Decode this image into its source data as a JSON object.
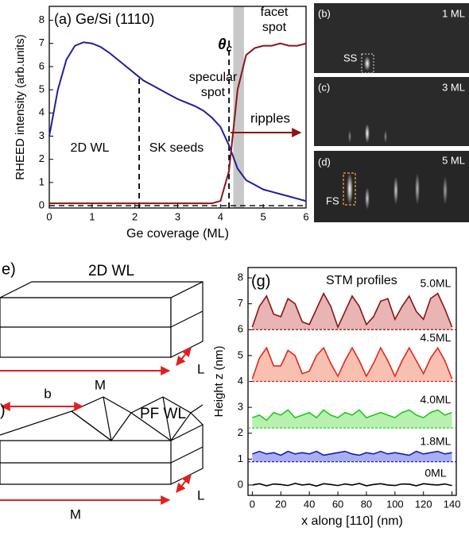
{
  "chart_data": [
    {
      "type": "line",
      "title": "(a) Ge/Si (1110)",
      "xlabel": "Ge coverage (ML)",
      "ylabel": "RHEED intensity (arb.units)",
      "x": [
        0,
        0.2,
        0.4,
        0.6,
        0.8,
        1.0,
        1.2,
        1.4,
        1.6,
        1.8,
        2.0,
        2.2,
        2.4,
        2.6,
        2.8,
        3.0,
        3.2,
        3.4,
        3.6,
        3.8,
        4.0,
        4.2,
        4.4,
        4.6,
        4.8,
        5.0,
        5.2,
        5.4,
        5.6,
        5.8,
        6.0
      ],
      "series": [
        {
          "name": "specular spot",
          "color": "#1f1f9c",
          "values": [
            3.0,
            5.0,
            6.3,
            6.9,
            7.05,
            7.0,
            6.85,
            6.6,
            6.3,
            6.0,
            5.7,
            5.4,
            5.2,
            5.0,
            4.8,
            4.6,
            4.45,
            4.3,
            4.1,
            3.8,
            3.4,
            2.6,
            1.6,
            1.1,
            0.9,
            0.7,
            0.6,
            0.5,
            0.4,
            0.3,
            0.2
          ]
        },
        {
          "name": "facet spot",
          "color": "#8b1414",
          "values": [
            0.1,
            0.1,
            0.1,
            0.1,
            0.1,
            0.1,
            0.1,
            0.1,
            0.1,
            0.1,
            0.1,
            0.1,
            0.1,
            0.1,
            0.1,
            0.1,
            0.1,
            0.1,
            0.1,
            0.1,
            0.2,
            1.5,
            5.0,
            6.5,
            6.8,
            6.9,
            6.9,
            7.0,
            6.9,
            6.9,
            7.0
          ]
        }
      ],
      "xlim": [
        0,
        6
      ],
      "ylim": [
        -0.1,
        8.6
      ],
      "xticks": [
        0,
        1,
        2,
        3,
        4,
        5,
        6
      ],
      "yticks": [
        0,
        1,
        2,
        3,
        4,
        5,
        6,
        7,
        8
      ],
      "vlines": [
        2.1,
        4.2
      ],
      "band": [
        4.3,
        4.55
      ],
      "hline": 0,
      "annotations": {
        "theta": "θc",
        "ripples": "ripples",
        "region1": "2D WL",
        "region2": "SK seeds"
      }
    },
    {
      "type": "area",
      "title": "(g)",
      "subtitle": "STM profiles",
      "xlabel": "x along [110] (nm)",
      "ylabel": "Height z (nm)",
      "x": [
        0,
        5,
        10,
        15,
        20,
        25,
        30,
        35,
        40,
        45,
        50,
        55,
        60,
        65,
        70,
        75,
        80,
        85,
        90,
        95,
        100,
        105,
        110,
        115,
        120,
        125,
        130,
        135,
        140
      ],
      "series": [
        {
          "name": "5.0ML",
          "color": "#8b1414",
          "fill": "#e8b4b4",
          "baseline": 6,
          "values": [
            6.1,
            6.9,
            7.3,
            6.6,
            6.5,
            7.2,
            7.0,
            6.3,
            6.2,
            6.8,
            7.4,
            6.9,
            6.1,
            6.7,
            7.3,
            6.9,
            6.2,
            6.5,
            7.1,
            7.2,
            6.4,
            6.9,
            7.3,
            6.7,
            6.4,
            7.2,
            7.4,
            6.8,
            6.1
          ]
        },
        {
          "name": "4.5ML",
          "color": "#e0281e",
          "fill": "#f8c0b0",
          "baseline": 4,
          "values": [
            4.1,
            4.9,
            5.3,
            4.6,
            4.6,
            5.2,
            5.0,
            4.3,
            4.4,
            5.0,
            5.3,
            4.7,
            4.2,
            4.8,
            5.3,
            4.8,
            4.2,
            4.7,
            5.3,
            4.8,
            4.2,
            4.8,
            5.3,
            4.8,
            4.3,
            4.9,
            5.3,
            4.8,
            4.1
          ]
        },
        {
          "name": "4.0ML",
          "color": "#22c822",
          "fill": "#b8f0b0",
          "baseline": 2.2,
          "values": [
            2.6,
            2.7,
            2.5,
            2.8,
            2.7,
            2.9,
            2.6,
            2.7,
            2.8,
            2.6,
            2.9,
            2.7,
            2.6,
            2.8,
            2.7,
            2.9,
            2.6,
            2.7,
            2.8,
            2.7,
            2.6,
            2.8,
            2.9,
            2.7,
            2.6,
            2.8,
            2.9,
            2.7,
            2.8
          ]
        },
        {
          "name": "1.8ML",
          "color": "#1a1ac0",
          "fill": "#a8b0f0",
          "baseline": 0.9,
          "values": [
            1.2,
            1.3,
            1.2,
            1.25,
            1.15,
            1.3,
            1.2,
            1.25,
            1.2,
            1.3,
            1.15,
            1.2,
            1.25,
            1.3,
            1.2,
            1.15,
            1.25,
            1.2,
            1.3,
            1.2,
            1.25,
            1.2,
            1.15,
            1.3,
            1.2,
            1.25,
            1.3,
            1.2,
            1.25
          ]
        },
        {
          "name": "0ML",
          "color": "#000000",
          "values": [
            0,
            0.05,
            -0.03,
            0.04,
            0.02,
            -0.02,
            0.06,
            0,
            0.03,
            -0.04,
            0.05,
            0.02,
            -0.02,
            0.04,
            0,
            0.06,
            -0.03,
            0.02,
            0.05,
            0,
            -0.02,
            0.04,
            0.03,
            -0.03,
            0.05,
            0.02,
            0,
            0.04,
            -0.02
          ]
        }
      ],
      "xlim": [
        -3,
        143
      ],
      "ylim": [
        -0.4,
        8.4
      ],
      "xticks": [
        0,
        20,
        40,
        60,
        80,
        100,
        120,
        140
      ],
      "yticks": [
        0,
        1,
        2,
        3,
        4,
        5,
        6,
        7,
        8
      ]
    }
  ],
  "images": [
    {
      "label": "(b)",
      "coverage": "1 ML",
      "spot": "SS"
    },
    {
      "label": "(c)",
      "coverage": "3 ML"
    },
    {
      "label": "(d)",
      "coverage": "5 ML",
      "spot": "FS"
    }
  ],
  "diagrams": [
    {
      "label": "e)",
      "title": "2D WL",
      "length": "M",
      "width": "L"
    },
    {
      "label": ")",
      "title": "PF WL",
      "period": "b",
      "length": "M",
      "width": "L"
    }
  ]
}
